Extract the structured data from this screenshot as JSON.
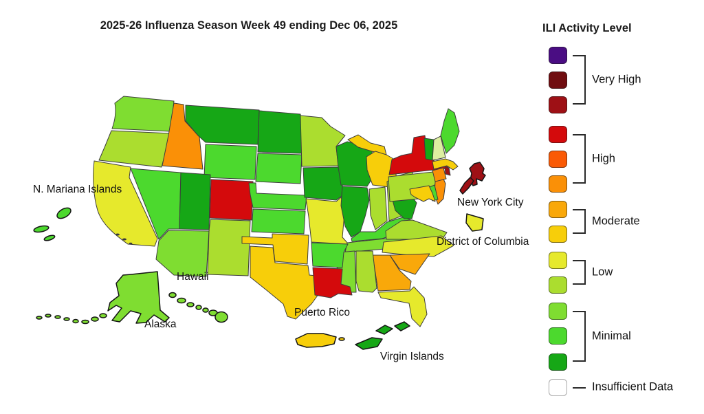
{
  "title": "2025-26 Influenza Season Week 49 ending Dec 06, 2025",
  "legend": {
    "title": "ILI Activity Level",
    "palette": {
      "1": "#4a0d83",
      "2": "#700d10",
      "3": "#9e1015",
      "4": "#d40a0c",
      "5": "#fa5a05",
      "6": "#fa9007",
      "7": "#f9a80a",
      "8": "#f7ce0a",
      "9": "#e6e92c",
      "10": "#abdd2f",
      "11": "#7fdd31",
      "12": "#4cd92e",
      "13": "#16a716",
      "14": "#ffffff"
    },
    "groups": [
      {
        "label": "Very High",
        "levels": [
          1,
          2,
          3
        ]
      },
      {
        "label": "High",
        "levels": [
          4,
          5,
          6
        ]
      },
      {
        "label": "Moderate",
        "levels": [
          7,
          8
        ]
      },
      {
        "label": "Low",
        "levels": [
          9,
          10
        ]
      },
      {
        "label": "Minimal",
        "levels": [
          11,
          12,
          13
        ]
      },
      {
        "label": "Insufficient Data",
        "levels": [
          14
        ]
      }
    ]
  },
  "map": {
    "labels": {
      "n_mariana": "N. Mariana Islands",
      "hawaii": "Hawaii",
      "alaska": "Alaska",
      "puerto_rico": "Puerto Rico",
      "virgin_islands": "Virgin Islands",
      "nyc": "New York City",
      "dc": "District of Columbia"
    },
    "states": [
      {
        "id": "WA",
        "name": "Washington",
        "level": 11
      },
      {
        "id": "OR",
        "name": "Oregon",
        "level": 10
      },
      {
        "id": "CA",
        "name": "California",
        "level": 9
      },
      {
        "id": "NV",
        "name": "Nevada",
        "level": 12
      },
      {
        "id": "ID",
        "name": "Idaho",
        "level": 6
      },
      {
        "id": "MT",
        "name": "Montana",
        "level": 13
      },
      {
        "id": "WY",
        "name": "Wyoming",
        "level": 12
      },
      {
        "id": "UT",
        "name": "Utah",
        "level": 13
      },
      {
        "id": "CO",
        "name": "Colorado",
        "level": 4
      },
      {
        "id": "AZ",
        "name": "Arizona",
        "level": 11
      },
      {
        "id": "NM",
        "name": "New Mexico",
        "level": 10
      },
      {
        "id": "ND",
        "name": "North Dakota",
        "level": 13
      },
      {
        "id": "SD",
        "name": "South Dakota",
        "level": 12
      },
      {
        "id": "NE",
        "name": "Nebraska",
        "level": 12
      },
      {
        "id": "KS",
        "name": "Kansas",
        "level": 12
      },
      {
        "id": "OK",
        "name": "Oklahoma",
        "level": 8
      },
      {
        "id": "TX",
        "name": "Texas",
        "level": 8
      },
      {
        "id": "MN",
        "name": "Minnesota",
        "level": 10
      },
      {
        "id": "IA",
        "name": "Iowa",
        "level": 13
      },
      {
        "id": "MO",
        "name": "Missouri",
        "level": 9
      },
      {
        "id": "AR",
        "name": "Arkansas",
        "level": 12
      },
      {
        "id": "LA",
        "name": "Louisiana",
        "level": 4
      },
      {
        "id": "WI",
        "name": "Wisconsin",
        "level": 13
      },
      {
        "id": "IL",
        "name": "Illinois",
        "level": 13
      },
      {
        "id": "MI",
        "name": "Michigan",
        "level": 8
      },
      {
        "id": "IN",
        "name": "Indiana",
        "level": 10
      },
      {
        "id": "OH",
        "name": "Ohio",
        "level": 10
      },
      {
        "id": "KY",
        "name": "Kentucky",
        "level": 12
      },
      {
        "id": "TN",
        "name": "Tennessee",
        "level": 11
      },
      {
        "id": "MS",
        "name": "Mississippi",
        "level": 11
      },
      {
        "id": "AL",
        "name": "Alabama",
        "level": 10
      },
      {
        "id": "GA",
        "name": "Georgia",
        "level": 7
      },
      {
        "id": "FL",
        "name": "Florida",
        "level": 9
      },
      {
        "id": "SC",
        "name": "South Carolina",
        "level": 7
      },
      {
        "id": "NC",
        "name": "North Carolina",
        "level": 9
      },
      {
        "id": "VA",
        "name": "Virginia",
        "level": 10
      },
      {
        "id": "WV",
        "name": "West Virginia",
        "level": 13
      },
      {
        "id": "MD",
        "name": "Maryland",
        "level": 8
      },
      {
        "id": "DE",
        "name": "Delaware",
        "level": 12
      },
      {
        "id": "PA",
        "name": "Pennsylvania",
        "level": 10
      },
      {
        "id": "NJ",
        "name": "New Jersey",
        "level": 6
      },
      {
        "id": "NY",
        "name": "New York",
        "level": 4
      },
      {
        "id": "CT",
        "name": "Connecticut",
        "level": 6
      },
      {
        "id": "RI",
        "name": "Rhode Island",
        "level": 3
      },
      {
        "id": "MA",
        "name": "Massachusetts",
        "level": 8
      },
      {
        "id": "VT",
        "name": "Vermont",
        "level": 13
      },
      {
        "id": "NH",
        "name": "New Hampshire",
        "level": 10,
        "color": "#dcefa0"
      },
      {
        "id": "ME",
        "name": "Maine",
        "level": 12
      },
      {
        "id": "AK",
        "name": "Alaska",
        "level": 11
      },
      {
        "id": "HI",
        "name": "Hawaii",
        "level": 11
      },
      {
        "id": "PR",
        "name": "Puerto Rico",
        "level": 8
      },
      {
        "id": "VI",
        "name": "Virgin Islands",
        "level": 13
      },
      {
        "id": "MP",
        "name": "N. Mariana Islands",
        "level": 12
      },
      {
        "id": "NYC",
        "name": "New York City",
        "level": 3
      },
      {
        "id": "DC",
        "name": "District of Columbia",
        "level": 9
      }
    ]
  }
}
